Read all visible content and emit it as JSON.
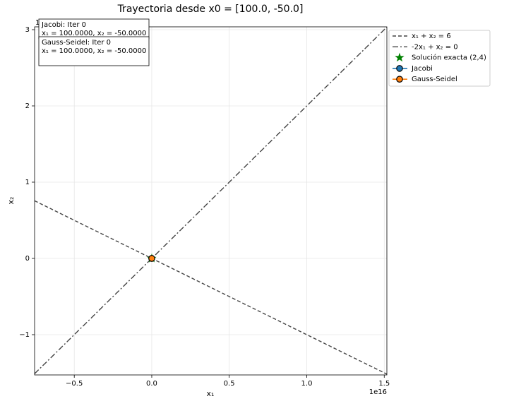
{
  "chart_data": {
    "type": "line",
    "title": "Trayectoria desde x0 = [100.0, -50.0]",
    "xlabel": "x₁",
    "ylabel": "x₂",
    "x_offset": "1e16",
    "y_offset": "1e16",
    "xlim": [
      -0.756,
      1.517
    ],
    "ylim": [
      -1.528,
      3.037
    ],
    "xticks": [
      {
        "value": -0.5,
        "label": "−0.5"
      },
      {
        "value": 0,
        "label": "0.0"
      },
      0.5,
      {
        "value": 1,
        "label": "1.0"
      },
      1.5
    ],
    "yticks": [
      {
        "value": -1,
        "label": "−1"
      },
      0,
      1,
      2,
      3
    ],
    "grid": true,
    "legend": "outside upper right",
    "annotations": [
      [
        "Jacobi: Iter 0",
        "x₁ = 100.0000, x₂ = -50.0000"
      ],
      [
        "Gauss-Seidel: Iter 0",
        "x₁ = 100.0000, x₂ = -50.0000"
      ]
    ],
    "series": [
      {
        "name": "x₁ + x₂ = 6",
        "color": "#444444",
        "style": "dashed",
        "x": [
          -0.756,
          1.517
        ],
        "values": [
          0.756,
          -1.517
        ]
      },
      {
        "name": "-2x₁ + x₂ = 0",
        "color": "#444444",
        "style": "dashdot",
        "x": [
          -0.756,
          1.517
        ],
        "values": [
          -1.512,
          3.034
        ]
      },
      {
        "name": "Solución exacta (2,4)",
        "color": "#008000",
        "style": "star",
        "x": [
          0
        ],
        "values": [
          0
        ]
      },
      {
        "name": "Jacobi",
        "color": "#1f77b4",
        "style": "marker-line",
        "x": [
          0
        ],
        "values": [
          0
        ]
      },
      {
        "name": "Gauss-Seidel",
        "color": "#ff7f0e",
        "style": "marker-line",
        "x": [
          0
        ],
        "values": [
          0
        ]
      }
    ]
  }
}
